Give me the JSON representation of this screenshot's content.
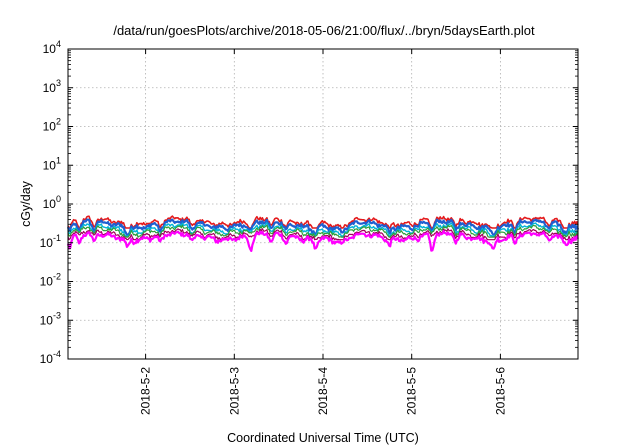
{
  "chart_data": {
    "type": "line",
    "title": "/data/run/goesPlots/archive/2018-05-06/21:00/flux/../bryn/5daysEarth.plot",
    "xlabel": "Coordinated Universal Time (UTC)",
    "ylabel": "cGy/day",
    "yscale": "log",
    "ylim": [
      0.0001,
      10000
    ],
    "y_ticks": [
      {
        "base": "10",
        "exp": "-4",
        "value": 0.0001
      },
      {
        "base": "10",
        "exp": "-3",
        "value": 0.001
      },
      {
        "base": "10",
        "exp": "-2",
        "value": 0.01
      },
      {
        "base": "10",
        "exp": "-1",
        "value": 0.1
      },
      {
        "base": "10",
        "exp": "0",
        "value": 1
      },
      {
        "base": "10",
        "exp": "1",
        "value": 10
      },
      {
        "base": "10",
        "exp": "2",
        "value": 100
      },
      {
        "base": "10",
        "exp": "3",
        "value": 1000
      },
      {
        "base": "10",
        "exp": "4",
        "value": 10000
      }
    ],
    "xlim": [
      "2018-05-01 03:00",
      "2018-05-06 21:00"
    ],
    "x_ticks": [
      "2018-5-2",
      "2018-5-3",
      "2018-5-4",
      "2018-5-5",
      "2018-5-6"
    ],
    "x_tick_dates": [
      "2018-05-02 00:00",
      "2018-05-03 00:00",
      "2018-05-04 00:00",
      "2018-05-05 00:00",
      "2018-05-06 00:00"
    ],
    "grid": true,
    "series": [
      {
        "color": "#e41a1c",
        "level": 0.36,
        "min": 0.24,
        "width": 1.6
      },
      {
        "color": "#1f5fd0",
        "level": 0.3,
        "min": 0.16,
        "width": 2.2
      },
      {
        "color": "#00b4d8",
        "level": 0.24,
        "min": 0.15,
        "width": 1.4
      },
      {
        "color": "#2e9e3a",
        "level": 0.21,
        "min": 0.14,
        "width": 1.2
      },
      {
        "color": "#a0005a",
        "level": 0.17,
        "min": 0.12,
        "width": 1.2
      },
      {
        "color": "#ff00ff",
        "level": 0.145,
        "min": 0.045,
        "width": 2.2
      }
    ],
    "dips": [
      {
        "t": "2018-05-01 03:30",
        "factor": 0.45
      },
      {
        "t": "2018-05-01 06:00",
        "factor": 0.55
      },
      {
        "t": "2018-05-01 10:00",
        "factor": 0.6
      },
      {
        "t": "2018-05-01 19:00",
        "factor": 0.6
      },
      {
        "t": "2018-05-02 04:00",
        "factor": 0.65
      },
      {
        "t": "2018-05-02 12:30",
        "factor": 0.65
      },
      {
        "t": "2018-05-03 04:30",
        "factor": 0.35
      },
      {
        "t": "2018-05-03 10:00",
        "factor": 0.6
      },
      {
        "t": "2018-05-03 14:00",
        "factor": 0.65
      },
      {
        "t": "2018-05-03 22:00",
        "factor": 0.55
      },
      {
        "t": "2018-05-04 18:00",
        "factor": 0.65
      },
      {
        "t": "2018-05-05 05:30",
        "factor": 0.32
      },
      {
        "t": "2018-05-05 12:00",
        "factor": 0.6
      },
      {
        "t": "2018-05-05 22:00",
        "factor": 0.45
      },
      {
        "t": "2018-05-06 04:00",
        "factor": 0.65
      },
      {
        "t": "2018-05-06 13:00",
        "factor": 0.7
      },
      {
        "t": "2018-05-06 17:30",
        "factor": 0.7
      }
    ],
    "trough": {
      "t": "2018-05-04 05:00",
      "factor": 0.6
    }
  }
}
